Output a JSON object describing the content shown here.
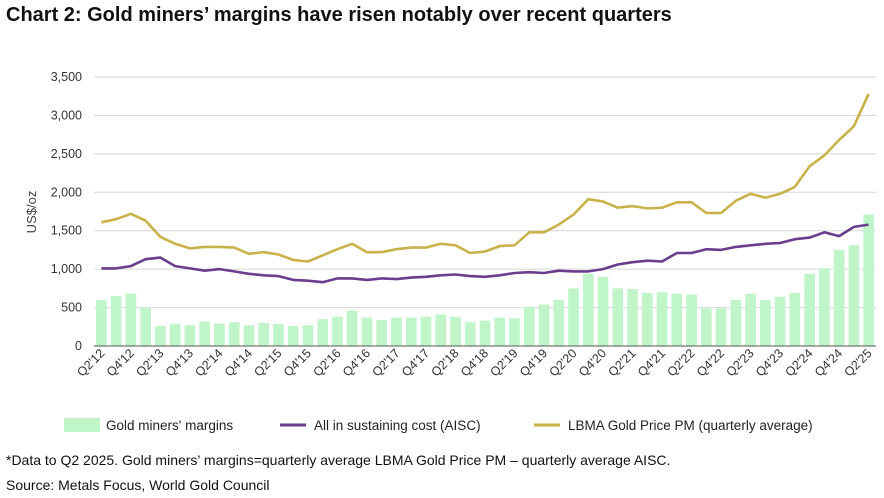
{
  "title": "Chart 2: Gold miners’ margins have risen notably over recent quarters",
  "footnote": "*Data to Q2 2025. Gold miners’ margins=quarterly average LBMA Gold Price PM – quarterly average AISC.",
  "source": "Source: Metals Focus, World Gold Council",
  "colors": {
    "margins": "#bff5c9",
    "aisc": "#6a3d8f",
    "gold": "#c9b24a",
    "grid": "#d6d6d6",
    "axis": "#555555"
  },
  "chart_data": {
    "type": "bar+line",
    "ylabel": "US$/oz",
    "xlabel": "",
    "ylim": [
      0,
      3500
    ],
    "yticks": [
      0,
      500,
      1000,
      1500,
      2000,
      2500,
      3000,
      3500
    ],
    "ytick_labels": [
      "0",
      "500",
      "1,000",
      "1,500",
      "2,000",
      "2,500",
      "3,000",
      "3,500"
    ],
    "grid": true,
    "legend_position": "bottom",
    "categories": [
      "Q2'12",
      "Q3'12",
      "Q4'12",
      "Q1'13",
      "Q2'13",
      "Q3'13",
      "Q4'13",
      "Q1'14",
      "Q2'14",
      "Q3'14",
      "Q4'14",
      "Q1'15",
      "Q2'15",
      "Q3'15",
      "Q4'15",
      "Q1'16",
      "Q2'16",
      "Q3'16",
      "Q4'16",
      "Q1'17",
      "Q2'17",
      "Q3'17",
      "Q4'17",
      "Q1'18",
      "Q2'18",
      "Q3'18",
      "Q4'18",
      "Q1'19",
      "Q2'19",
      "Q3'19",
      "Q4'19",
      "Q1'20",
      "Q2'20",
      "Q3'20",
      "Q4'20",
      "Q1'21",
      "Q2'21",
      "Q3'21",
      "Q4'21",
      "Q1'22",
      "Q2'22",
      "Q3'22",
      "Q4'22",
      "Q1'23",
      "Q2'23",
      "Q3'23",
      "Q4'23",
      "Q1'24",
      "Q2'24",
      "Q3'24",
      "Q4'24",
      "Q1'25",
      "Q2'25"
    ],
    "xtick_labels": [
      "Q2'12",
      "Q4'12",
      "Q2'13",
      "Q4'13",
      "Q2'14",
      "Q4'14",
      "Q2'15",
      "Q4'15",
      "Q2'16",
      "Q4'16",
      "Q2'17",
      "Q4'17",
      "Q2'18",
      "Q4'18",
      "Q2'19",
      "Q4'19",
      "Q2'20",
      "Q4'20",
      "Q2'21",
      "Q4'21",
      "Q2'22",
      "Q4'22",
      "Q2'23",
      "Q4'23",
      "Q2'24",
      "Q4'24",
      "Q2'25"
    ],
    "series": [
      {
        "name": "Gold miners' margins",
        "kind": "bar",
        "values": [
          600,
          650,
          680,
          500,
          260,
          290,
          270,
          320,
          290,
          310,
          270,
          300,
          290,
          260,
          270,
          350,
          380,
          460,
          370,
          340,
          370,
          370,
          380,
          410,
          380,
          310,
          330,
          370,
          360,
          510,
          540,
          600,
          750,
          940,
          900,
          750,
          740,
          690,
          700,
          680,
          670,
          490,
          490,
          600,
          680,
          600,
          640,
          690,
          940,
          1010,
          1250,
          1310,
          1710
        ]
      },
      {
        "name": "All in sustaining cost (AISC)",
        "kind": "line",
        "values": [
          1010,
          1010,
          1040,
          1130,
          1150,
          1040,
          1010,
          980,
          1000,
          970,
          940,
          920,
          910,
          860,
          850,
          830,
          880,
          880,
          860,
          880,
          870,
          890,
          900,
          920,
          930,
          910,
          900,
          920,
          950,
          960,
          950,
          980,
          970,
          970,
          1000,
          1060,
          1090,
          1110,
          1100,
          1210,
          1210,
          1260,
          1250,
          1290,
          1310,
          1330,
          1340,
          1390,
          1410,
          1480,
          1430,
          1550,
          1580
        ]
      },
      {
        "name": "LBMA Gold Price PM (quarterly average)",
        "kind": "line",
        "values": [
          1610,
          1650,
          1720,
          1630,
          1420,
          1330,
          1270,
          1290,
          1290,
          1280,
          1200,
          1220,
          1190,
          1120,
          1100,
          1180,
          1260,
          1330,
          1220,
          1220,
          1260,
          1280,
          1280,
          1330,
          1310,
          1210,
          1230,
          1300,
          1310,
          1480,
          1480,
          1580,
          1710,
          1910,
          1880,
          1800,
          1820,
          1790,
          1800,
          1870,
          1870,
          1730,
          1730,
          1890,
          1980,
          1930,
          1980,
          2070,
          2340,
          2480,
          2680,
          2860,
          3280
        ]
      }
    ]
  }
}
